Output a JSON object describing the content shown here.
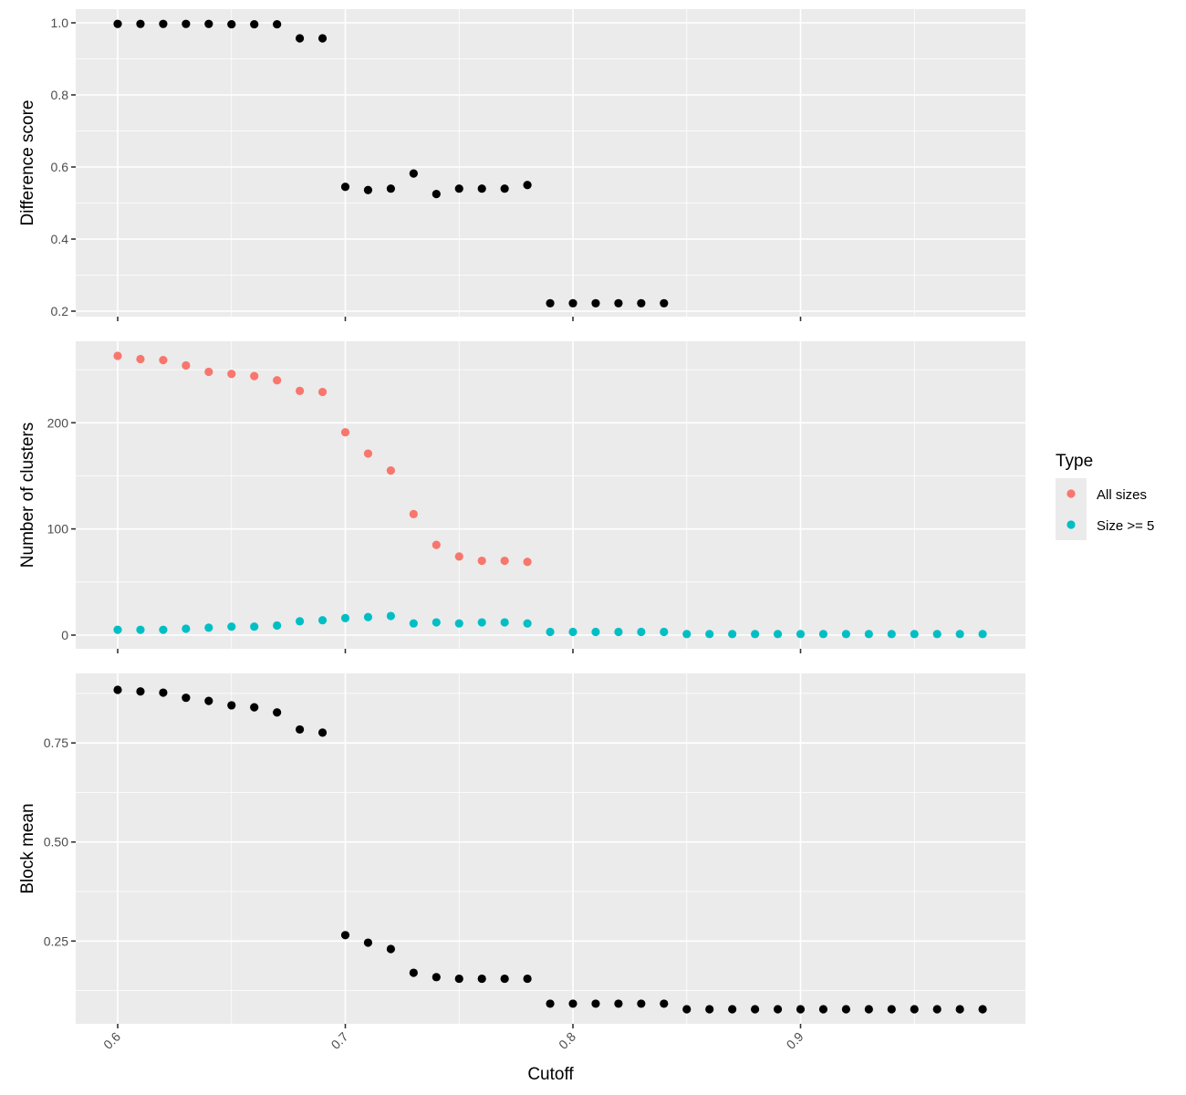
{
  "chart_data": {
    "type": "scatter",
    "xlabel": "Cutoff",
    "x_ticks": [
      "0.6",
      "0.7",
      "0.8",
      "0.9"
    ],
    "xlim": [
      0.6,
      0.98
    ],
    "panels": [
      {
        "ylabel": "Difference score",
        "ylim": [
          0.2,
          1.0
        ],
        "y_ticks": [
          "0.2",
          "0.4",
          "0.6",
          "0.8",
          "1.0"
        ],
        "series": [
          {
            "color": "#000000",
            "x": [
              0.6,
              0.61,
              0.62,
              0.63,
              0.64,
              0.65,
              0.66,
              0.67,
              0.68,
              0.69,
              0.7,
              0.71,
              0.72,
              0.73,
              0.74,
              0.75,
              0.76,
              0.77,
              0.78,
              0.79,
              0.8,
              0.81,
              0.82,
              0.83,
              0.84
            ],
            "y": [
              0.997,
              0.997,
              0.997,
              0.997,
              0.997,
              0.996,
              0.996,
              0.996,
              0.957,
              0.957,
              0.545,
              0.536,
              0.54,
              0.582,
              0.525,
              0.54,
              0.54,
              0.54,
              0.55,
              0.222,
              0.222,
              0.222,
              0.222,
              0.222,
              0.222
            ]
          }
        ]
      },
      {
        "ylabel": "Number of clusters",
        "ylim": [
          0,
          263
        ],
        "y_ticks": [
          "0",
          "100",
          "200"
        ],
        "series": [
          {
            "name": "All sizes",
            "color": "#F8766D",
            "x": [
              0.6,
              0.61,
              0.62,
              0.63,
              0.64,
              0.65,
              0.66,
              0.67,
              0.68,
              0.69,
              0.7,
              0.71,
              0.72,
              0.73,
              0.74,
              0.75,
              0.76,
              0.77,
              0.78
            ],
            "y": [
              263,
              260,
              259,
              254,
              248,
              246,
              244,
              240,
              230,
              229,
              191,
              171,
              155,
              114,
              85,
              74,
              70,
              70,
              69
            ]
          },
          {
            "name": "Size >= 5",
            "color": "#00BFC4",
            "x": [
              0.6,
              0.61,
              0.62,
              0.63,
              0.64,
              0.65,
              0.66,
              0.67,
              0.68,
              0.69,
              0.7,
              0.71,
              0.72,
              0.73,
              0.74,
              0.75,
              0.76,
              0.77,
              0.78,
              0.79,
              0.8,
              0.81,
              0.82,
              0.83,
              0.84,
              0.85,
              0.86,
              0.87,
              0.88,
              0.89,
              0.9,
              0.91,
              0.92,
              0.93,
              0.94,
              0.95,
              0.96,
              0.97,
              0.98
            ],
            "y": [
              5,
              5,
              5,
              6,
              7,
              8,
              8,
              9,
              13,
              14,
              16,
              17,
              18,
              11,
              12,
              11,
              12,
              12,
              11,
              3,
              3,
              3,
              3,
              3,
              3,
              1,
              1,
              1,
              1,
              1,
              1,
              1,
              1,
              1,
              1,
              1,
              1,
              1,
              1
            ]
          }
        ]
      },
      {
        "ylabel": "Block mean",
        "ylim": [
          0.078,
          0.884
        ],
        "y_ticks": [
          "0.25",
          "0.50",
          "0.75"
        ],
        "series": [
          {
            "color": "#000000",
            "x": [
              0.6,
              0.61,
              0.62,
              0.63,
              0.64,
              0.65,
              0.66,
              0.67,
              0.68,
              0.69,
              0.7,
              0.71,
              0.72,
              0.73,
              0.74,
              0.75,
              0.76,
              0.77,
              0.78,
              0.79,
              0.8,
              0.81,
              0.82,
              0.83,
              0.84,
              0.85,
              0.86,
              0.87,
              0.88,
              0.89,
              0.9,
              0.91,
              0.92,
              0.93,
              0.94,
              0.95,
              0.96,
              0.97,
              0.98
            ],
            "y": [
              0.884,
              0.88,
              0.877,
              0.864,
              0.856,
              0.845,
              0.84,
              0.827,
              0.784,
              0.776,
              0.265,
              0.246,
              0.23,
              0.17,
              0.159,
              0.155,
              0.155,
              0.155,
              0.155,
              0.092,
              0.092,
              0.092,
              0.092,
              0.092,
              0.092,
              0.078,
              0.078,
              0.078,
              0.078,
              0.078,
              0.078,
              0.078,
              0.078,
              0.078,
              0.078,
              0.078,
              0.078,
              0.078,
              0.078
            ]
          }
        ]
      }
    ],
    "legend": {
      "title": "Type",
      "position": "right",
      "items": [
        {
          "label": "All sizes",
          "color": "#F8766D"
        },
        {
          "label": "Size >= 5",
          "color": "#00BFC4"
        }
      ]
    },
    "grid": true
  }
}
